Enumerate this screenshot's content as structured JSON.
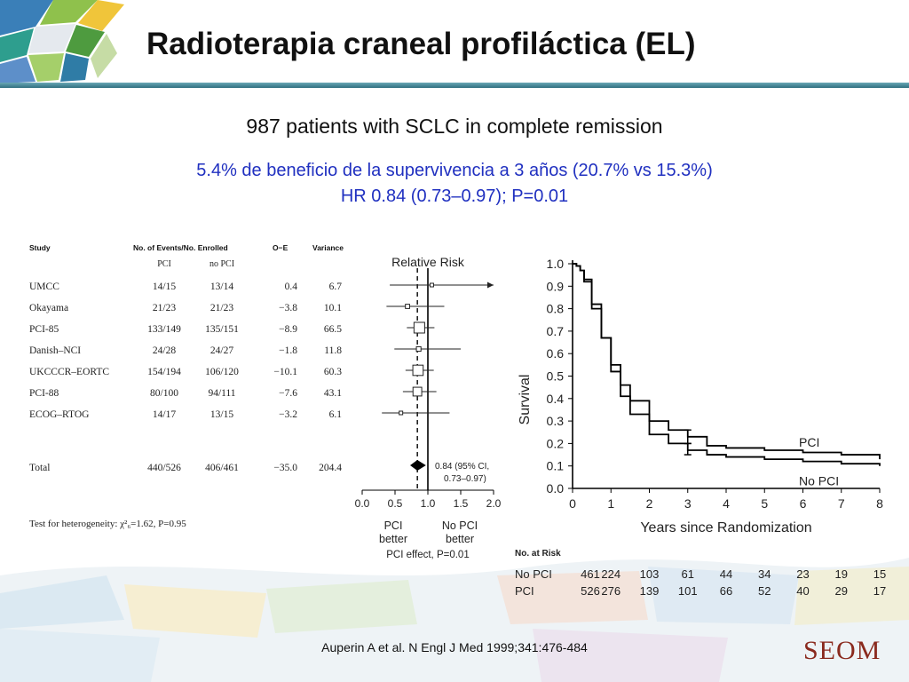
{
  "title": "Radioterapia craneal profiláctica (EL)",
  "subtitle": "987 patients with SCLC in complete remission",
  "benefit_line1": "5.4% de beneficio de la supervivencia a 3 años (20.7% vs 15.3%)",
  "benefit_line2": "HR 0.84 (0.73–0.97); P=0.01",
  "citation": "Auperin A et al. N Engl J Med 1999;341:476-484",
  "logo": "SEOM",
  "colors": {
    "benefit_text": "#2030c0",
    "title_bar": "#4a8fa0",
    "logo": "#8a2a1e"
  },
  "chart_data": [
    {
      "type": "table",
      "columns": [
        "Study",
        "No. of Events/No. Enrolled",
        "O−E",
        "Variance"
      ],
      "subcolumns": [
        "PCI",
        "no PCI"
      ],
      "rows": [
        {
          "study": "UMCC",
          "pci": "14/15",
          "no_pci": "13/14",
          "o_e": "0.4",
          "variance": "6.7"
        },
        {
          "study": "Okayama",
          "pci": "21/23",
          "no_pci": "21/23",
          "o_e": "−3.8",
          "variance": "10.1"
        },
        {
          "study": "PCI-85",
          "pci": "133/149",
          "no_pci": "135/151",
          "o_e": "−8.9",
          "variance": "66.5"
        },
        {
          "study": "Danish–NCI",
          "pci": "24/28",
          "no_pci": "24/27",
          "o_e": "−1.8",
          "variance": "11.8"
        },
        {
          "study": "UKCCCR–EORTC",
          "pci": "154/194",
          "no_pci": "106/120",
          "o_e": "−10.1",
          "variance": "60.3"
        },
        {
          "study": "PCI-88",
          "pci": "80/100",
          "no_pci": "94/111",
          "o_e": "−7.6",
          "variance": "43.1"
        },
        {
          "study": "ECOG–RTOG",
          "pci": "14/17",
          "no_pci": "13/15",
          "o_e": "−3.2",
          "variance": "6.1"
        }
      ],
      "total": {
        "study": "Total",
        "pci": "440/526",
        "no_pci": "406/461",
        "o_e": "−35.0",
        "variance": "204.4"
      },
      "heterogeneity": "Test for heterogeneity: χ²₆=1.62, P=0.95"
    },
    {
      "type": "scatter",
      "title": "Relative Risk",
      "xlim": [
        0.0,
        2.0
      ],
      "xticks": [
        "0.0",
        "0.5",
        "1.0",
        "1.5",
        "2.0"
      ],
      "reference_line": 1.0,
      "pooled_line": 0.84,
      "points": [
        {
          "study": "UMCC",
          "rr": 1.06,
          "lo": 0.42,
          "hi": 2.0,
          "arrow": true
        },
        {
          "study": "Okayama",
          "rr": 0.69,
          "lo": 0.37,
          "hi": 1.25
        },
        {
          "study": "PCI-85",
          "rr": 0.87,
          "lo": 0.68,
          "hi": 1.1
        },
        {
          "study": "Danish–NCI",
          "rr": 0.86,
          "lo": 0.49,
          "hi": 1.5
        },
        {
          "study": "UKCCCR–EORTC",
          "rr": 0.85,
          "lo": 0.66,
          "hi": 1.09
        },
        {
          "study": "PCI-88",
          "rr": 0.84,
          "lo": 0.62,
          "hi": 1.13
        },
        {
          "study": "ECOG–RTOG",
          "rr": 0.59,
          "lo": 0.3,
          "hi": 1.33
        }
      ],
      "pooled": {
        "rr": 0.84,
        "lo": 0.73,
        "hi": 0.97,
        "label1": "0.84 (95% CI,",
        "label2": "0.73–0.97)"
      },
      "favor_left": [
        "PCI",
        "better"
      ],
      "favor_right": [
        "No PCI",
        "better"
      ],
      "effect_label": "PCI effect, P=0.01"
    },
    {
      "type": "line",
      "xlabel": "Years since Randomization",
      "ylabel": "Survival",
      "xlim": [
        0,
        8
      ],
      "ylim": [
        0.0,
        1.0
      ],
      "xticks": [
        "0",
        "1",
        "2",
        "3",
        "4",
        "5",
        "6",
        "7",
        "8"
      ],
      "yticks": [
        "0.0",
        "0.1",
        "0.2",
        "0.3",
        "0.4",
        "0.5",
        "0.6",
        "0.7",
        "0.8",
        "0.9",
        "1.0"
      ],
      "series": [
        {
          "name": "PCI",
          "x": [
            0,
            0.1,
            0.2,
            0.3,
            0.5,
            0.75,
            1.0,
            1.25,
            1.5,
            2.0,
            2.5,
            3.0,
            3.5,
            4.0,
            5.0,
            6.0,
            7.0,
            8.0
          ],
          "y": [
            1.0,
            0.99,
            0.97,
            0.93,
            0.82,
            0.67,
            0.55,
            0.46,
            0.39,
            0.3,
            0.26,
            0.23,
            0.19,
            0.18,
            0.17,
            0.16,
            0.15,
            0.13
          ]
        },
        {
          "name": "No PCI",
          "x": [
            0,
            0.1,
            0.2,
            0.3,
            0.5,
            0.75,
            1.0,
            1.25,
            1.5,
            2.0,
            2.5,
            3.0,
            3.5,
            4.0,
            5.0,
            6.0,
            7.0,
            8.0
          ],
          "y": [
            1.0,
            0.99,
            0.97,
            0.92,
            0.8,
            0.67,
            0.52,
            0.41,
            0.33,
            0.24,
            0.2,
            0.17,
            0.15,
            0.14,
            0.13,
            0.12,
            0.11,
            0.1
          ]
        }
      ],
      "error_bars": [
        {
          "x": 3.0,
          "y": 0.23,
          "lo": 0.2,
          "hi": 0.26
        },
        {
          "x": 3.0,
          "y": 0.17,
          "lo": 0.15,
          "hi": 0.2
        }
      ],
      "at_risk_label": "No. at Risk",
      "at_risk": [
        {
          "name": "No PCI",
          "values": [
            "461",
            "224",
            "103",
            "61",
            "44",
            "34",
            "23",
            "19",
            "15"
          ]
        },
        {
          "name": "PCI",
          "values": [
            "526",
            "276",
            "139",
            "101",
            "66",
            "52",
            "40",
            "29",
            "17"
          ]
        }
      ]
    }
  ]
}
